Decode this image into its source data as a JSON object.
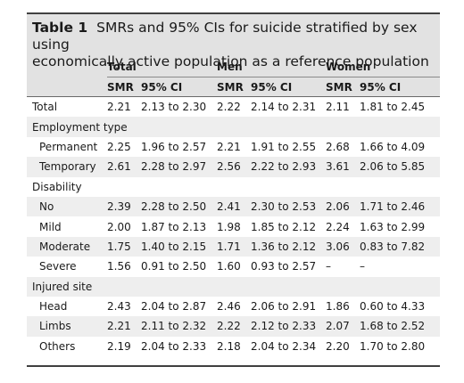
{
  "title": {
    "label": "Table 1",
    "text_line1": "SMRs and 95% CIs for suicide stratified by sex using",
    "text_line2": "economically active population as a reference population"
  },
  "groups": [
    "Total",
    "Men",
    "Women"
  ],
  "subheaders": [
    "SMR",
    "95% CI",
    "SMR",
    "95% CI",
    "SMR",
    "95% CI"
  ],
  "rows": [
    {
      "kind": "data",
      "label": "Total",
      "indent": false,
      "shade": false,
      "cells": [
        "2.21",
        "2.13 to 2.30",
        "2.22",
        "2.14 to 2.31",
        "2.11",
        "1.81 to 2.45"
      ]
    },
    {
      "kind": "section",
      "label": "Employment type",
      "shade": true
    },
    {
      "kind": "data",
      "label": "Permanent",
      "indent": true,
      "shade": false,
      "cells": [
        "2.25",
        "1.96 to 2.57",
        "2.21",
        "1.91 to 2.55",
        "2.68",
        "1.66 to 4.09"
      ]
    },
    {
      "kind": "data",
      "label": "Temporary",
      "indent": true,
      "shade": true,
      "cells": [
        "2.61",
        "2.28 to 2.97",
        "2.56",
        "2.22 to 2.93",
        "3.61",
        "2.06 to 5.85"
      ]
    },
    {
      "kind": "section",
      "label": "Disability",
      "shade": false
    },
    {
      "kind": "data",
      "label": "No",
      "indent": true,
      "shade": true,
      "cells": [
        "2.39",
        "2.28 to 2.50",
        "2.41",
        "2.30 to 2.53",
        "2.06",
        "1.71 to 2.46"
      ]
    },
    {
      "kind": "data",
      "label": "Mild",
      "indent": true,
      "shade": false,
      "cells": [
        "2.00",
        "1.87 to 2.13",
        "1.98",
        "1.85 to 2.12",
        "2.24",
        "1.63 to 2.99"
      ]
    },
    {
      "kind": "data",
      "label": "Moderate",
      "indent": true,
      "shade": true,
      "cells": [
        "1.75",
        "1.40 to 2.15",
        "1.71",
        "1.36 to 2.12",
        "3.06",
        "0.83 to 7.82"
      ]
    },
    {
      "kind": "data",
      "label": "Severe",
      "indent": true,
      "shade": false,
      "cells": [
        "1.56",
        "0.91 to 2.50",
        "1.60",
        "0.93 to 2.57",
        "–",
        "–"
      ]
    },
    {
      "kind": "section",
      "label": "Injured site",
      "shade": true
    },
    {
      "kind": "data",
      "label": "Head",
      "indent": true,
      "shade": false,
      "cells": [
        "2.43",
        "2.04 to 2.87",
        "2.46",
        "2.06 to 2.91",
        "1.86",
        "0.60 to 4.33"
      ]
    },
    {
      "kind": "data",
      "label": "Limbs",
      "indent": true,
      "shade": true,
      "cells": [
        "2.21",
        "2.11 to 2.32",
        "2.22",
        "2.12 to 2.33",
        "2.07",
        "1.68 to 2.52"
      ]
    },
    {
      "kind": "data",
      "label": "Others",
      "indent": true,
      "shade": false,
      "cells": [
        "2.19",
        "2.04 to 2.33",
        "2.18",
        "2.04 to 2.34",
        "2.20",
        "1.70 to 2.80"
      ]
    }
  ]
}
